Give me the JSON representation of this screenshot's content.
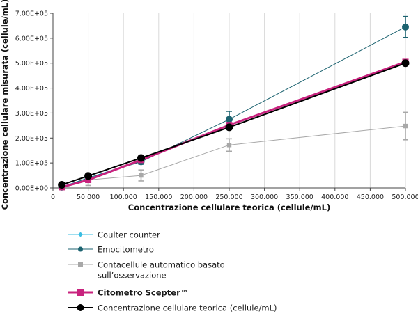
{
  "chart_data": {
    "type": "line",
    "title": "",
    "xlabel": "Concentrazione cellulare teorica (cellule/mL)",
    "ylabel": "Concentrazione cellulare misurata (cellule/mL)",
    "xlim": [
      0,
      500000
    ],
    "ylim": [
      0,
      700000
    ],
    "x_ticks": [
      0,
      50000,
      100000,
      150000,
      200000,
      250000,
      300000,
      350000,
      400000,
      450000,
      500000
    ],
    "x_tick_labels": [
      "0",
      "50.000",
      "100.000",
      "150.000",
      "200.000",
      "250.000",
      "300.000",
      "350.000",
      "400.000",
      "450.000",
      "500.000"
    ],
    "y_ticks": [
      0,
      100000,
      200000,
      300000,
      400000,
      500000,
      600000,
      700000
    ],
    "y_tick_labels": [
      "0.00E+00",
      "1.00E+05",
      "2.00E+05",
      "3.00E+05",
      "4.00E+05",
      "5.00E+05",
      "6.00E+05",
      "7.00E+05"
    ],
    "grid": "vertical",
    "legend_position": "bottom-left",
    "series": [
      {
        "name": "Coulter counter",
        "color": "#3bbde2",
        "marker": "diamond",
        "line_width": 1,
        "points": [
          {
            "x": 12500,
            "y": 5000
          },
          {
            "x": 125000,
            "y": 110000
          },
          {
            "x": 250000,
            "y": 250000
          },
          {
            "x": 500000,
            "y": 505000
          }
        ]
      },
      {
        "name": "Emocitometro",
        "color": "#1c6370",
        "marker": "circle",
        "line_width": 1,
        "points": [
          {
            "x": 12500,
            "y": 3000,
            "err": 2000
          },
          {
            "x": 50000,
            "y": 40000,
            "err": 5000
          },
          {
            "x": 125000,
            "y": 105000,
            "err": 10000
          },
          {
            "x": 250000,
            "y": 275000,
            "err": 32000
          },
          {
            "x": 500000,
            "y": 645000,
            "err": 42000
          }
        ]
      },
      {
        "name": "Contacellule automatico basato sull’osservazione",
        "color": "#a8a8a8",
        "marker": "square",
        "line_width": 1,
        "points": [
          {
            "x": 12500,
            "y": 2000,
            "err": 2000
          },
          {
            "x": 50000,
            "y": 32000,
            "err": 22000
          },
          {
            "x": 125000,
            "y": 50000,
            "err": 22000
          },
          {
            "x": 250000,
            "y": 172000,
            "err": 25000
          },
          {
            "x": 500000,
            "y": 248000,
            "err": 55000
          }
        ]
      },
      {
        "name": "Citometro Scepter™",
        "color": "#c8237e",
        "marker": "square",
        "line_width": 3,
        "points": [
          {
            "x": 12500,
            "y": 3000
          },
          {
            "x": 50000,
            "y": 32000
          },
          {
            "x": 125000,
            "y": 112000
          },
          {
            "x": 250000,
            "y": 252000
          },
          {
            "x": 500000,
            "y": 505000
          }
        ]
      },
      {
        "name": "Concentrazione cellulare teorica (cellule/mL)",
        "color": "#000000",
        "marker": "circle",
        "line_width": 2,
        "points": [
          {
            "x": 12500,
            "y": 12500
          },
          {
            "x": 50000,
            "y": 48000
          },
          {
            "x": 125000,
            "y": 120000
          },
          {
            "x": 250000,
            "y": 243000
          },
          {
            "x": 500000,
            "y": 500000
          }
        ]
      }
    ],
    "legend_entries": [
      {
        "label": "Coulter counter",
        "bold": false
      },
      {
        "label": "Emocitometro",
        "bold": false
      },
      {
        "label": "Contacellule automatico basato",
        "label2": "sull’osservazione",
        "bold": false
      },
      {
        "label": "Citometro Scepter™",
        "bold": true
      },
      {
        "label": "Concentrazione cellulare teorica (cellule/mL)",
        "bold": false
      }
    ]
  }
}
